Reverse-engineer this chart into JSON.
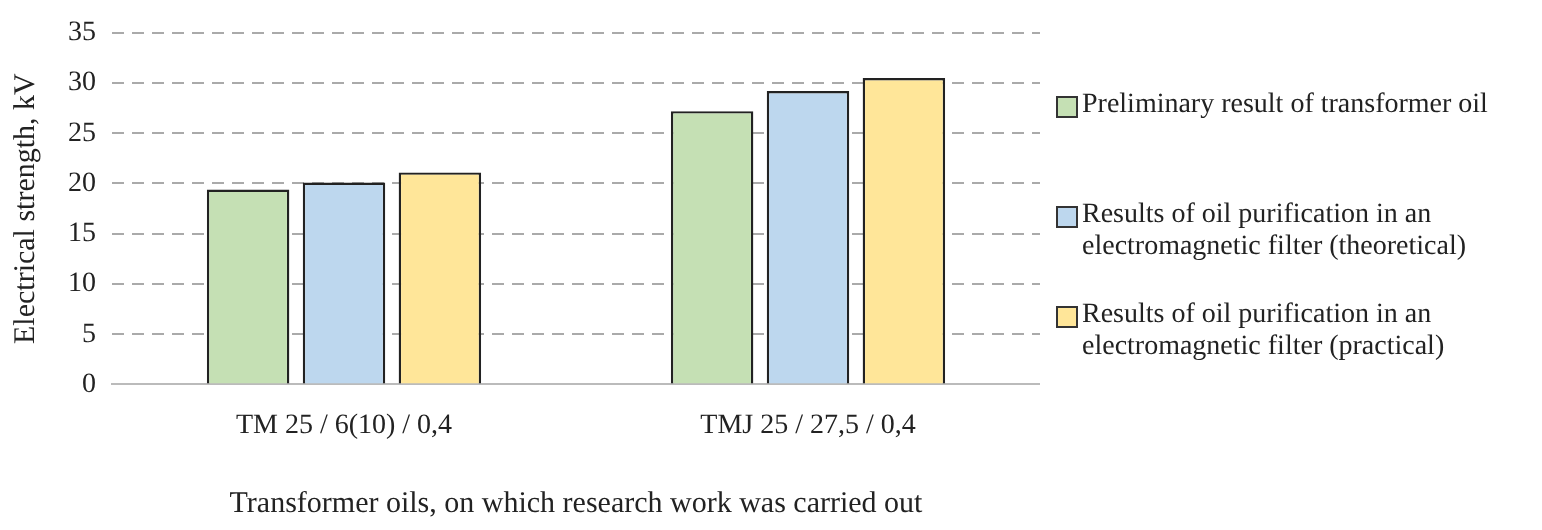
{
  "chart_data": {
    "type": "bar",
    "xlabel": "Transformer oils, on which research work was carried out",
    "ylabel": "Electrical strength, kV",
    "categories": [
      "TM 25 / 6(10) / 0,4",
      "TMJ 25 / 27,5 / 0,4"
    ],
    "series": [
      {
        "name": "Preliminary result of transformer oil",
        "color": "#c5e0b4",
        "values": [
          19.4,
          27.2
        ]
      },
      {
        "name": "Results of oil purification in an electromagnetic filter (theoretical)",
        "color": "#bdd7ee",
        "values": [
          20.1,
          29.2
        ]
      },
      {
        "name": "Results of oil purification in an electromagnetic filter (practical)",
        "color": "#ffe699",
        "values": [
          21.1,
          30.5
        ]
      }
    ],
    "ylim": [
      0,
      35
    ],
    "yticks": [
      0,
      5,
      10,
      15,
      20,
      25,
      30,
      35
    ],
    "grid": "y",
    "legend": "right"
  }
}
